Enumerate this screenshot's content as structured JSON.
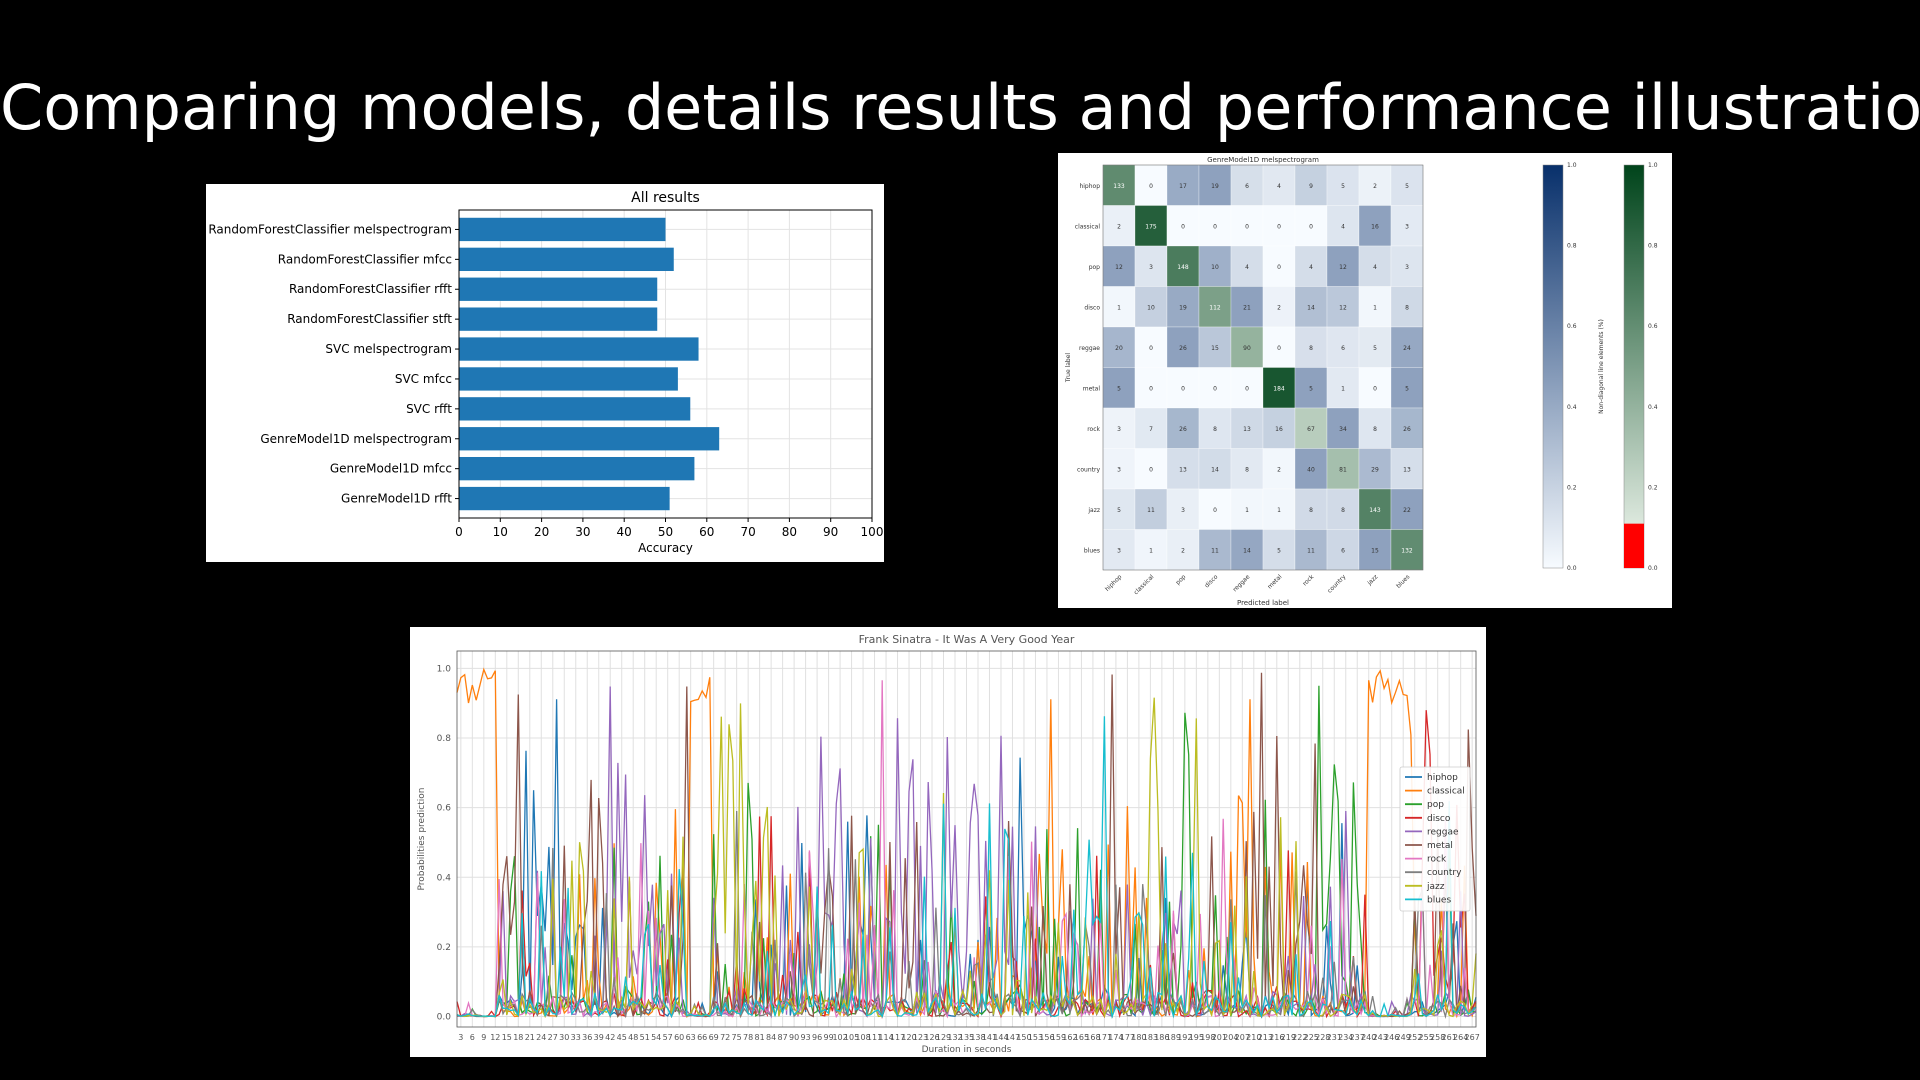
{
  "slide": {
    "title": "Comparing models, details results and performance illustration"
  },
  "chart_data": [
    {
      "type": "bar",
      "orientation": "horizontal",
      "title": "All results",
      "xlabel": "Accuracy",
      "ylabel": "",
      "xlim": [
        0,
        100
      ],
      "xticks": [
        0,
        10,
        20,
        30,
        40,
        50,
        60,
        70,
        80,
        90,
        100
      ],
      "grid": true,
      "color": "#1f77b4",
      "categories": [
        "RandomForestClassifier melspectrogram",
        "RandomForestClassifier mfcc",
        "RandomForestClassifier rfft",
        "RandomForestClassifier stft",
        "SVC melspectrogram",
        "SVC mfcc",
        "SVC rfft",
        "GenreModel1D melspectrogram",
        "GenreModel1D mfcc",
        "GenreModel1D rfft"
      ],
      "values": [
        50,
        52,
        48,
        48,
        58,
        53,
        56,
        63,
        57,
        51
      ]
    },
    {
      "type": "heatmap",
      "title": "GenreModel1D melspectrogram",
      "xlabel": "Predicted label",
      "ylabel": "True label",
      "labels": [
        "hiphop",
        "classical",
        "pop",
        "disco",
        "reggae",
        "metal",
        "rock",
        "country",
        "jazz",
        "blues"
      ],
      "matrix": [
        [
          133,
          0,
          17,
          19,
          6,
          4,
          9,
          5,
          2,
          5
        ],
        [
          2,
          175,
          0,
          0,
          0,
          0,
          0,
          4,
          16,
          3
        ],
        [
          12,
          3,
          148,
          10,
          4,
          0,
          4,
          12,
          4,
          3
        ],
        [
          1,
          10,
          19,
          112,
          21,
          2,
          14,
          12,
          1,
          8
        ],
        [
          20,
          0,
          26,
          15,
          90,
          0,
          8,
          6,
          5,
          24
        ],
        [
          5,
          0,
          0,
          0,
          0,
          184,
          5,
          1,
          0,
          5
        ],
        [
          3,
          7,
          26,
          8,
          13,
          16,
          67,
          34,
          8,
          26
        ],
        [
          3,
          0,
          13,
          14,
          8,
          2,
          40,
          81,
          29,
          13
        ],
        [
          5,
          11,
          3,
          0,
          1,
          1,
          8,
          8,
          143,
          22
        ],
        [
          3,
          1,
          2,
          11,
          14,
          5,
          11,
          6,
          15,
          132
        ]
      ],
      "colorbar_left": {
        "label": "Non-diagonal line elements (%)",
        "ticks": [
          "0.0",
          "0.2",
          "0.4",
          "0.6",
          "0.8",
          "1.0"
        ],
        "colormap": "Blues"
      },
      "colorbar_right": {
        "label": "Diagonal element (%)",
        "ticks": [
          "0.0",
          "0.2",
          "0.4",
          "0.6",
          "0.8",
          "1.0"
        ],
        "colormap": "Greens",
        "highlight_color": "#ff0000",
        "highlight_level": 0.11
      }
    },
    {
      "type": "line",
      "title": "Frank Sinatra - It Was A Very Good Year",
      "xlabel": "Duration in seconds",
      "ylabel": "Probabilities prediction",
      "ylim": [
        -0.03,
        1.05
      ],
      "yticks": [
        "0.0",
        "0.2",
        "0.4",
        "0.6",
        "0.8",
        "1.0"
      ],
      "x_start": 2,
      "x_end": 268,
      "x_tick_step": 3,
      "grid": true,
      "legend_position": "center right",
      "series": [
        {
          "name": "hiphop",
          "color": "#1f77b4"
        },
        {
          "name": "classical",
          "color": "#ff7f0e"
        },
        {
          "name": "pop",
          "color": "#2ca02c"
        },
        {
          "name": "disco",
          "color": "#d62728"
        },
        {
          "name": "reggae",
          "color": "#9467bd"
        },
        {
          "name": "metal",
          "color": "#8c564b"
        },
        {
          "name": "rock",
          "color": "#e377c2"
        },
        {
          "name": "country",
          "color": "#7f7f7f"
        },
        {
          "name": "jazz",
          "color": "#bcbd22"
        },
        {
          "name": "blues",
          "color": "#17becf"
        }
      ]
    }
  ]
}
